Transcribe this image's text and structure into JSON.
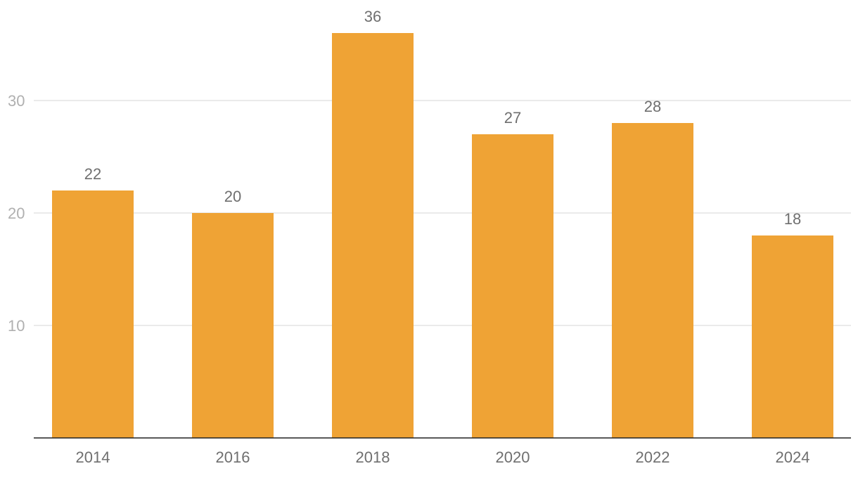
{
  "chart_data": {
    "type": "bar",
    "title": "",
    "xlabel": "",
    "ylabel": "",
    "categories": [
      "2014",
      "2016",
      "2018",
      "2020",
      "2022",
      "2024"
    ],
    "values": [
      22,
      20,
      36,
      27,
      28,
      18
    ],
    "data_labels": [
      "22",
      "20",
      "36",
      "27",
      "28",
      "18"
    ],
    "ylim": [
      0,
      36
    ],
    "yticks": [
      10,
      20,
      30
    ],
    "ytick_labels": [
      "10",
      "20",
      "30"
    ],
    "grid": "horizontal",
    "legend": "none",
    "colors": {
      "bar": "#EFA335",
      "grid": "#E3E3E3",
      "axis": "#222222",
      "y_tick_text": "#B0B0B0",
      "label_text": "#6F6F6F"
    }
  }
}
